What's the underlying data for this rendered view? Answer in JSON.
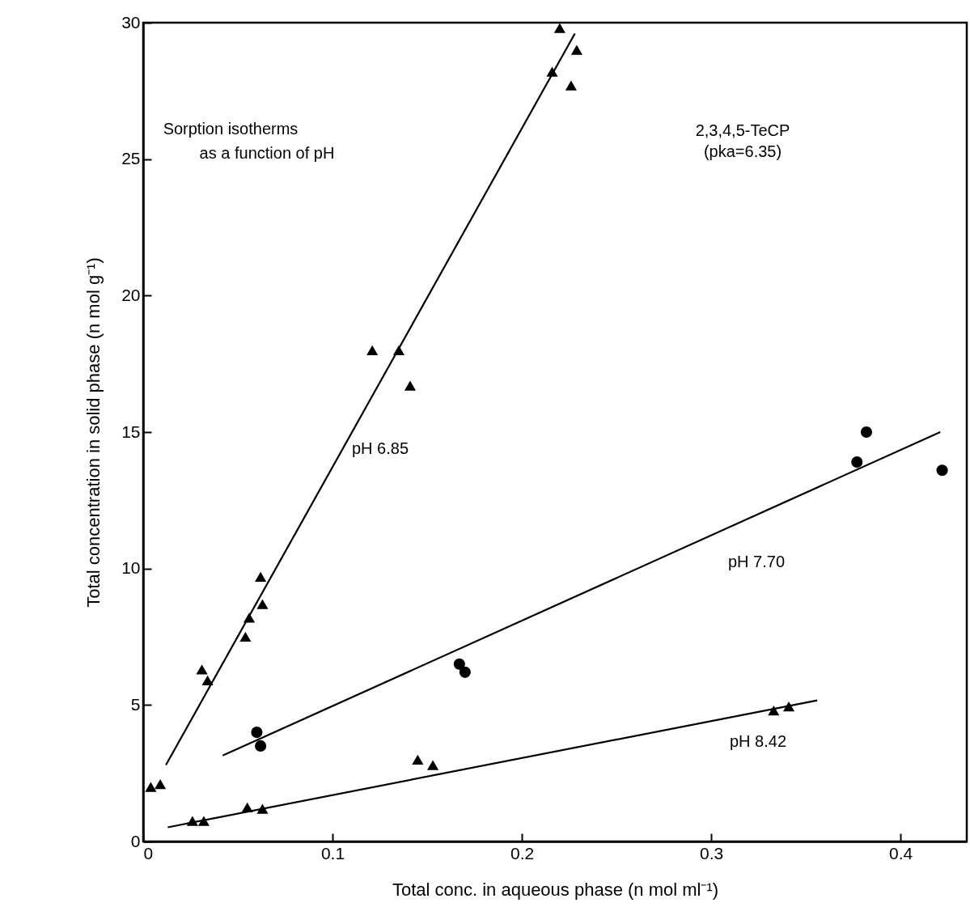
{
  "chart_data": {
    "type": "scatter",
    "xlabel": "Total conc. in aqueous phase (n mol ml⁻¹)",
    "ylabel": "Total concentration in solid phase (n mol g⁻¹)",
    "xlim": [
      0,
      0.435
    ],
    "ylim": [
      0,
      30
    ],
    "xticks": [
      0,
      0.1,
      0.2,
      0.3,
      0.4
    ],
    "yticks": [
      0,
      5,
      10,
      15,
      20,
      25,
      30
    ],
    "grid": false,
    "series": [
      {
        "marker": "triangle",
        "color": "#000000",
        "x": [
          0.004,
          0.009,
          0.031,
          0.034,
          0.054,
          0.056,
          0.062,
          0.063,
          0.121,
          0.135,
          0.141,
          0.216,
          0.22,
          0.226,
          0.229
        ],
        "values": [
          2.0,
          2.1,
          6.3,
          5.9,
          7.5,
          8.2,
          9.7,
          8.7,
          18.0,
          18.0,
          16.7,
          28.2,
          29.8,
          27.7,
          29.0
        ]
      },
      {
        "marker": "circle",
        "color": "#000000",
        "x": [
          0.06,
          0.062,
          0.167,
          0.17,
          0.377,
          0.382,
          0.422
        ],
        "values": [
          4.0,
          3.5,
          6.5,
          6.2,
          13.9,
          15.0,
          13.6
        ]
      },
      {
        "marker": "triangle",
        "color": "#000000",
        "x": [
          0.026,
          0.032,
          0.055,
          0.063,
          0.145,
          0.153,
          0.333,
          0.341
        ],
        "values": [
          0.75,
          0.75,
          1.25,
          1.2,
          3.0,
          2.8,
          4.8,
          4.95
        ]
      },
      {
        "type": "line",
        "color": "#000000",
        "x": [
          0.012,
          0.228
        ],
        "values": [
          2.8,
          29.6
        ]
      },
      {
        "type": "line",
        "color": "#000000",
        "x": [
          0.042,
          0.421
        ],
        "values": [
          3.15,
          15.0
        ]
      },
      {
        "type": "line",
        "color": "#000000",
        "x": [
          0.013,
          0.356
        ],
        "values": [
          0.52,
          5.17
        ]
      }
    ],
    "annotations": [
      "Sorption isotherms",
      "as a function of pH",
      "2,3,4,5-TeCP",
      "(pka=6.35)",
      "pH 6.85",
      "pH 7.70",
      "pH 8.42"
    ]
  }
}
